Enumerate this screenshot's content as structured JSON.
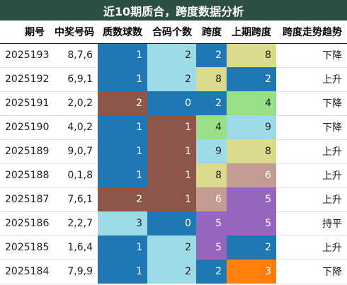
{
  "title": "近10期质合，跨度数据分析",
  "columns": [
    "期号",
    "中奖号码",
    "质数球数",
    "合码个数",
    "跨度",
    "上期跨度",
    "跨度走势趋势"
  ],
  "rows": [
    {
      "period": "2025193",
      "numbers": "8,7,6",
      "prime": "1",
      "composite": "2",
      "span": "2",
      "prev_span": "8",
      "trend": "下降",
      "prime_bg": "#1f77b4",
      "composite_bg": "#9edae5",
      "span_bg": "#1f77b4",
      "prev_bg": "#dbdb8d"
    },
    {
      "period": "2025192",
      "numbers": "6,9,1",
      "prime": "1",
      "composite": "2",
      "span": "8",
      "prev_span": "2",
      "trend": "上升",
      "prime_bg": "#1f77b4",
      "composite_bg": "#9edae5",
      "span_bg": "#dbdb8d",
      "prev_bg": "#1f77b4"
    },
    {
      "period": "2025191",
      "numbers": "2,0,2",
      "prime": "2",
      "composite": "0",
      "span": "2",
      "prev_span": "4",
      "trend": "下降",
      "prime_bg": "#8c564b",
      "composite_bg": "#1f77b4",
      "span_bg": "#1f77b4",
      "prev_bg": "#98df8a"
    },
    {
      "period": "2025190",
      "numbers": "4,0,2",
      "prime": "1",
      "composite": "1",
      "span": "4",
      "prev_span": "9",
      "trend": "下降",
      "prime_bg": "#1f77b4",
      "composite_bg": "#8c564b",
      "span_bg": "#98df8a",
      "prev_bg": "#9edae5"
    },
    {
      "period": "2025189",
      "numbers": "9,0,7",
      "prime": "1",
      "composite": "1",
      "span": "9",
      "prev_span": "8",
      "trend": "上升",
      "prime_bg": "#1f77b4",
      "composite_bg": "#8c564b",
      "span_bg": "#9edae5",
      "prev_bg": "#dbdb8d"
    },
    {
      "period": "2025188",
      "numbers": "0,1,8",
      "prime": "1",
      "composite": "1",
      "span": "8",
      "prev_span": "6",
      "trend": "上升",
      "prime_bg": "#1f77b4",
      "composite_bg": "#8c564b",
      "span_bg": "#dbdb8d",
      "prev_bg": "#c49c94"
    },
    {
      "period": "2025187",
      "numbers": "7,6,1",
      "prime": "2",
      "composite": "1",
      "span": "6",
      "prev_span": "5",
      "trend": "上升",
      "prime_bg": "#8c564b",
      "composite_bg": "#8c564b",
      "span_bg": "#c49c94",
      "prev_bg": "#9467bd"
    },
    {
      "period": "2025186",
      "numbers": "2,2,7",
      "prime": "3",
      "composite": "0",
      "span": "5",
      "prev_span": "5",
      "trend": "持平",
      "prime_bg": "#9edae5",
      "composite_bg": "#1f77b4",
      "span_bg": "#9467bd",
      "prev_bg": "#9467bd"
    },
    {
      "period": "2025185",
      "numbers": "1,6,4",
      "prime": "1",
      "composite": "2",
      "span": "5",
      "prev_span": "2",
      "trend": "上升",
      "prime_bg": "#1f77b4",
      "composite_bg": "#9edae5",
      "span_bg": "#9467bd",
      "prev_bg": "#1f77b4"
    },
    {
      "period": "2025184",
      "numbers": "7,9,9",
      "prime": "1",
      "composite": "2",
      "span": "2",
      "prev_span": "3",
      "trend": "下降",
      "prime_bg": "#1f77b4",
      "composite_bg": "#9edae5",
      "span_bg": "#1f77b4",
      "prev_bg": "#ff7f0e"
    }
  ],
  "colors": {
    "title_bg": "#2c4f43",
    "light_text_on": [
      "#1f77b4",
      "#8c564b",
      "#9467bd",
      "#c49c94",
      "#ff7f0e"
    ]
  }
}
